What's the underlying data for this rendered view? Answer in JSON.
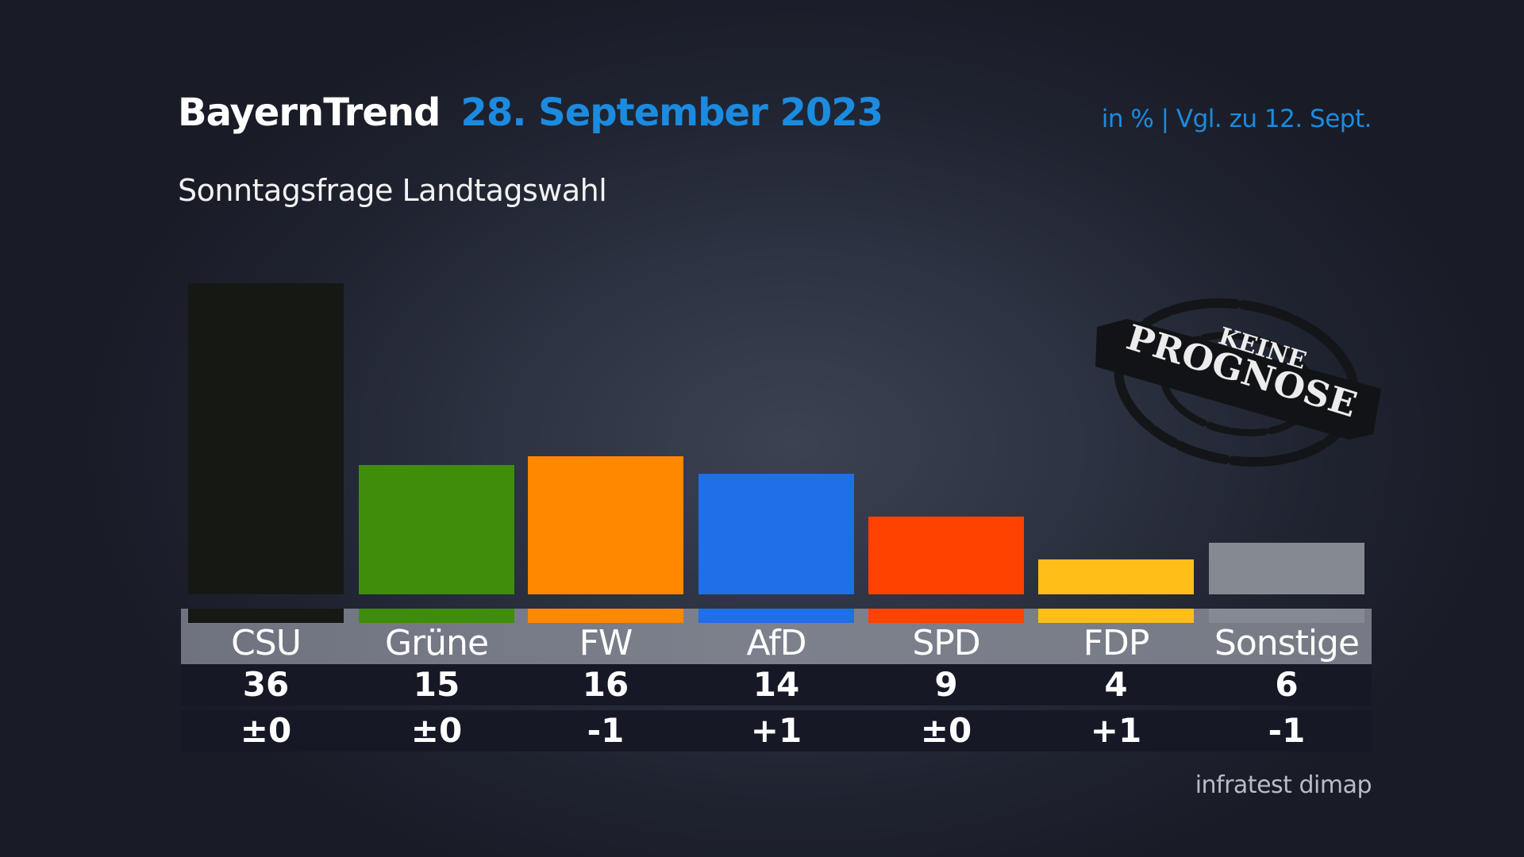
{
  "header": {
    "title": "BayernTrend",
    "date": "28. September 2023",
    "unit_note": "in % | Vgl. zu 12. Sept.",
    "subtitle": "Sonntagsfrage Landtagswahl"
  },
  "stamp": {
    "line1": "KEINE",
    "line2": "PROGNOSE"
  },
  "source": "infratest dimap",
  "parties": [
    {
      "name": "CSU",
      "value": "36",
      "change": "±0",
      "color": "#161814"
    },
    {
      "name": "Grüne",
      "value": "15",
      "change": "±0",
      "color": "#408d0b"
    },
    {
      "name": "FW",
      "value": "16",
      "change": "-1",
      "color": "#ff8800"
    },
    {
      "name": "AfD",
      "value": "14",
      "change": "+1",
      "color": "#206ee8"
    },
    {
      "name": "SPD",
      "value": "9",
      "change": "±0",
      "color": "#ff4200"
    },
    {
      "name": "FDP",
      "value": "4",
      "change": "+1",
      "color": "#ffbe18"
    },
    {
      "name": "Sonstige",
      "value": "6",
      "change": "-1",
      "color": "#858a92"
    }
  ],
  "chart_data": {
    "type": "bar",
    "title": "BayernTrend 28. September 2023",
    "subtitle": "Sonntagsfrage Landtagswahl",
    "unit": "in %",
    "comparison": "Vgl. zu 12. Sept.",
    "categories": [
      "CSU",
      "Grüne",
      "FW",
      "AfD",
      "SPD",
      "FDP",
      "Sonstige"
    ],
    "values": [
      36,
      15,
      16,
      14,
      9,
      4,
      6
    ],
    "changes": [
      0,
      0,
      -1,
      1,
      0,
      1,
      -1
    ],
    "colors": [
      "#161814",
      "#408d0b",
      "#ff8800",
      "#206ee8",
      "#ff4200",
      "#ffbe18",
      "#858a92"
    ],
    "xlabel": "",
    "ylabel": "",
    "ylim": [
      0,
      36
    ],
    "grid": false,
    "annotation": "KEINE PROGNOSE",
    "source": "infratest dimap"
  }
}
